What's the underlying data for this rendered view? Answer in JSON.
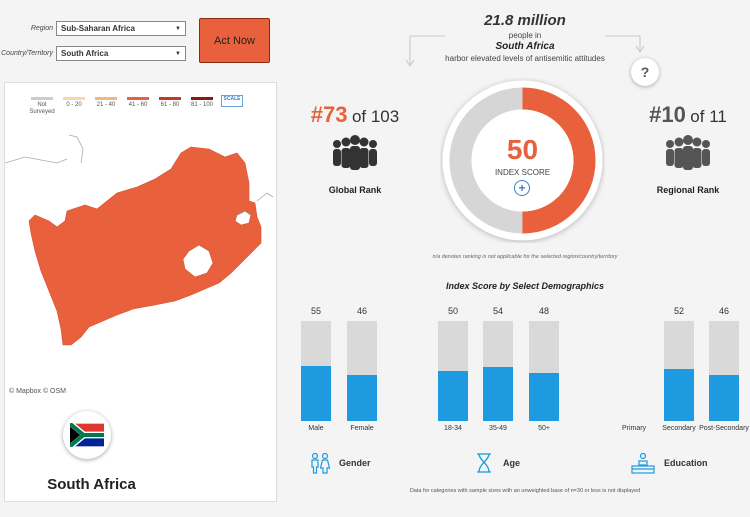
{
  "filters": {
    "region_label": "Region",
    "region_value": "Sub-Saharan Africa",
    "country_label": "Country/Territory",
    "country_value": "South Africa"
  },
  "act_button": "Act Now",
  "map": {
    "legend": [
      {
        "label": "Not Surveyed",
        "color": "#cccccc"
      },
      {
        "label": "0 - 20",
        "color": "#f5d9a8"
      },
      {
        "label": "21 - 40",
        "color": "#f0b97c"
      },
      {
        "label": "41 - 60",
        "color": "#e8613c"
      },
      {
        "label": "61 - 80",
        "color": "#c43a24"
      },
      {
        "label": "81 - 100",
        "color": "#8c1a10"
      }
    ],
    "scale_label": "SCALE",
    "attribution": "© Mapbox  © OSM",
    "country_color": "#e8613c",
    "country_name": "South Africa"
  },
  "headline": {
    "population": "21.8 million",
    "line1": "people in",
    "country": "South Africa",
    "line3": "harbor elevated levels of antisemitic attitudes"
  },
  "help_icon": "?",
  "global_rank": {
    "rank": "#73",
    "of": "of 103",
    "label": "Global Rank",
    "color": "#e8613c"
  },
  "regional_rank": {
    "rank": "#10",
    "of": "of 11",
    "label": "Regional Rank",
    "color": "#555555"
  },
  "index": {
    "value": "50",
    "label": "INDEX SCORE",
    "fraction": 0.5,
    "color": "#e8613c",
    "track_color": "#d6d6d6"
  },
  "na_note": "n/a denotes ranking is not applicable for the selected region/country/territory",
  "demographics": {
    "title": "Index Score by Select Demographics",
    "bars": [
      {
        "value": "55",
        "fraction": 0.55,
        "label": "Male"
      },
      {
        "value": "46",
        "fraction": 0.46,
        "label": "Female"
      },
      {
        "value": "50",
        "fraction": 0.5,
        "label": "18-34"
      },
      {
        "value": "54",
        "fraction": 0.54,
        "label": "35-49"
      },
      {
        "value": "48",
        "fraction": 0.48,
        "label": "50+"
      },
      {
        "value": "",
        "fraction": 0,
        "label": "Primary"
      },
      {
        "value": "52",
        "fraction": 0.52,
        "label": "Secondary"
      },
      {
        "value": "46",
        "fraction": 0.46,
        "label": "Post-Secondary"
      }
    ],
    "groups": {
      "gender": "Gender",
      "age": "Age",
      "education": "Education"
    }
  },
  "footer_note": "Data for categories with sample sizes with an unweighted base of n=30 or less is not displayed"
}
